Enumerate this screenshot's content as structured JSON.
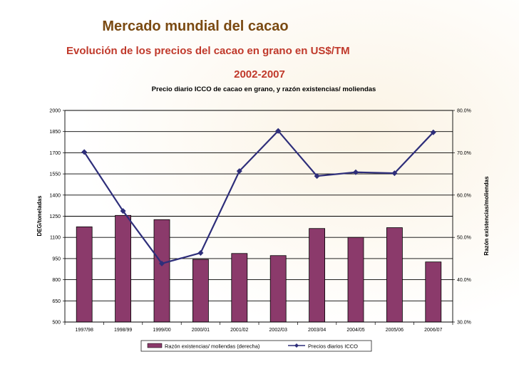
{
  "slide": {
    "title": "Mercado mundial del cacao",
    "subtitle": "Evolución de los precios del cacao en grano en US$/TM",
    "years": "2002-2007"
  },
  "colors": {
    "title": "#7a4a12",
    "subtitle": "#c0392b",
    "bar": "#8b3a6b",
    "line": "#2e2e7a"
  },
  "chart_data": {
    "type": "bar",
    "title": "Precio diario ICCO de cacao en grano, y razón existencias/ moliendas",
    "categories": [
      "1997/98",
      "1998/99",
      "1999/00",
      "2000/01",
      "2001/02",
      "2002/03",
      "2003/04",
      "2004/05",
      "2005/06",
      "2006/07"
    ],
    "series": [
      {
        "name": "Razón existencias/ moliendas (derecha)",
        "type": "bar",
        "axis": "right",
        "values": [
          52.5,
          55.2,
          54.2,
          44.8,
          46.2,
          45.7,
          52.1,
          50.0,
          52.3,
          44.2
        ]
      },
      {
        "name": "Precios diarios ICCO",
        "type": "line",
        "axis": "left",
        "marker": "diamond",
        "values": [
          1705,
          1287,
          915,
          990,
          1570,
          1855,
          1535,
          1562,
          1555,
          1845
        ]
      }
    ],
    "ylabel": "DEG/toneladas",
    "ylabel_right": "Razón existencias/moliendas",
    "ylim": [
      500,
      2000
    ],
    "ylim_right": [
      30.0,
      80.0
    ],
    "y_ticks": [
      "2000",
      "1850",
      "1700",
      "1550",
      "1400",
      "1250",
      "1100",
      "950",
      "800",
      "650",
      "500"
    ],
    "y_ticks_right": [
      "80.0%",
      "70.0%",
      "60.0%",
      "50.0%",
      "40.0%",
      "30.0%"
    ],
    "grid": true,
    "legend_position": "bottom"
  }
}
